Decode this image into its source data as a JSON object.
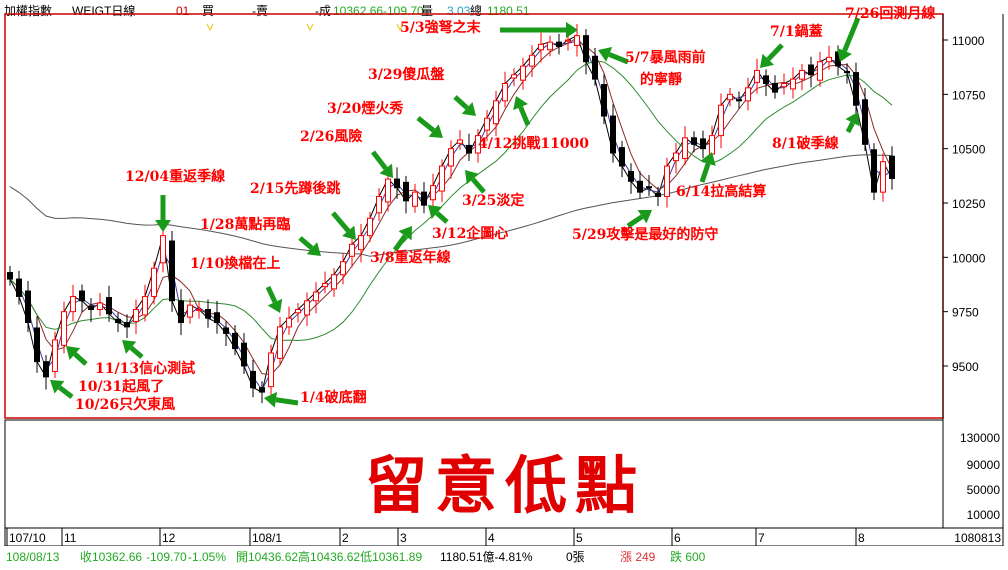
{
  "header": {
    "symbol": "加權指數",
    "mode": "WEIGT日線",
    "code": "01",
    "buy_label": "買",
    "sell_label": "-賣",
    "deal_label": "-成",
    "price": "10362.66",
    "change": "-109.70",
    "volume_label": "量",
    "volume": "3.03",
    "total_label": "總",
    "total": "1180.51"
  },
  "status": {
    "date": "108/08/13",
    "close": "收10362.66",
    "change": "-109.70",
    "pct": "-1.05%",
    "ohl": "開10436.62高10436.62低10361.89",
    "amount": "1180.51億-4.81%",
    "lots": "0張",
    "up": "漲 249",
    "down": "跌 600"
  },
  "big_text": "留意低點",
  "colors": {
    "up": "#ff0000",
    "down": "#000000",
    "annotation": "#ff0000",
    "arrow": "#1a9a1a",
    "ma_short": "#000000",
    "ma_mid": "#3b3b9a",
    "ma_month": "#8b2b2b",
    "ma_quarter": "#2e8b2e",
    "ma_year": "#555555"
  },
  "annotations": [
    "5/3強弩之末",
    "7/26回測月線",
    "7/1鍋蓋",
    "5/7暴風雨前",
    "的寧靜",
    "3/29傻瓜盤",
    "3/20煙火秀",
    "4/12挑戰11000",
    "2/26風險",
    "12/04重返季線",
    "2/15先蹲後跳",
    "8/1破季線",
    "6/14拉高結算",
    "3/25淡定",
    "1/28萬點再臨",
    "3/12企圖心",
    "5/29攻擊是最好的防守",
    "1/10換檔在上",
    "3/8重返年線",
    "11/13信心測試",
    "10/31起風了",
    "10/26只欠東風",
    "1/4破底翻"
  ],
  "chart_data": {
    "type": "candlestick",
    "title": "",
    "price_ticks": [
      11000,
      10750,
      10500,
      10250,
      10000,
      9750,
      9500
    ],
    "price_range": [
      9300,
      11250
    ],
    "volume_ticks": [
      "130000",
      "90000",
      "50000",
      "10000"
    ],
    "x_ticks": [
      "107/10",
      "11",
      "12",
      "108/1",
      "2",
      "3",
      "4",
      "5",
      "6",
      "7",
      "8",
      "1080813"
    ],
    "closes": [
      9900,
      9820,
      9700,
      9520,
      9450,
      9620,
      9750,
      9820,
      9800,
      9760,
      9790,
      9740,
      9700,
      9680,
      9760,
      9820,
      9950,
      10100,
      9800,
      9700,
      9780,
      9760,
      9720,
      9700,
      9650,
      9580,
      9500,
      9400,
      9380,
      9560,
      9680,
      9720,
      9760,
      9800,
      9840,
      9880,
      9920,
      9980,
      10060,
      10100,
      10180,
      10280,
      10360,
      10320,
      10260,
      10300,
      10240,
      10330,
      10420,
      10500,
      10540,
      10480,
      10560,
      10640,
      10720,
      10800,
      10840,
      10880,
      10930,
      10980,
      10990,
      10970,
      11000,
      11020,
      10900,
      10820,
      10650,
      10480,
      10420,
      10350,
      10300,
      10320,
      10280,
      10420,
      10480,
      10550,
      10520,
      10500,
      10560,
      10700,
      10750,
      10720,
      10780,
      10860,
      10800,
      10760,
      10800,
      10820,
      10860,
      10840,
      10900,
      10920,
      10880,
      10850,
      10700,
      10520,
      10300,
      10440,
      10362.66
    ],
    "moving_averages": [
      5,
      10,
      20,
      60,
      240
    ],
    "grid": false
  }
}
